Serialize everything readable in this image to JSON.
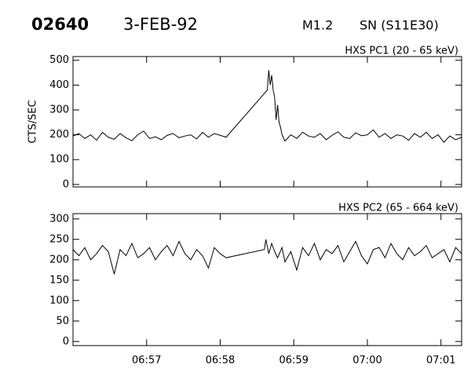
{
  "header": {
    "event": "02640",
    "date": "3-FEB-92",
    "class": "M1.2",
    "location": "SN (S11E30)"
  },
  "chart_data": [
    {
      "type": "line",
      "title": "HXS PC1 (20 - 65 keV)",
      "ylabel": "CTS/SEC",
      "color": "#000000",
      "x": [
        0,
        0.08,
        0.16,
        0.24,
        0.32,
        0.4,
        0.48,
        0.56,
        0.64,
        0.72,
        0.8,
        0.88,
        0.96,
        1.04,
        1.12,
        1.2,
        1.28,
        1.36,
        1.44,
        1.52,
        1.6,
        1.68,
        1.76,
        1.84,
        1.92,
        2,
        2.08,
        2.64,
        2.66,
        2.68,
        2.7,
        2.72,
        2.74,
        2.76,
        2.78,
        2.8,
        2.82,
        2.84,
        2.88,
        2.96,
        3.04,
        3.12,
        3.2,
        3.28,
        3.36,
        3.44,
        3.52,
        3.6,
        3.68,
        3.76,
        3.84,
        3.92,
        4,
        4.08,
        4.16,
        4.24,
        4.32,
        4.4,
        4.48,
        4.56,
        4.64,
        4.72,
        4.8,
        4.88,
        4.96,
        5.04,
        5.12,
        5.2,
        5.28
      ],
      "values": [
        195,
        205,
        185,
        200,
        178,
        210,
        190,
        182,
        205,
        188,
        176,
        200,
        215,
        185,
        192,
        180,
        198,
        205,
        188,
        195,
        200,
        183,
        210,
        190,
        205,
        198,
        190,
        380,
        460,
        400,
        440,
        380,
        350,
        260,
        320,
        250,
        230,
        200,
        175,
        200,
        185,
        210,
        195,
        190,
        205,
        180,
        198,
        212,
        190,
        185,
        208,
        196,
        200,
        220,
        190,
        205,
        185,
        200,
        195,
        178,
        205,
        190,
        210,
        185,
        200,
        170,
        195,
        180,
        190
      ],
      "xlim": [
        0,
        5.28
      ],
      "xticks": [
        1,
        2,
        3,
        4,
        5
      ],
      "ylim": [
        -10,
        515
      ],
      "yticks": [
        0,
        100,
        200,
        300,
        400,
        500
      ]
    },
    {
      "type": "line",
      "title": "HXS PC2 (65 - 664 keV)",
      "color": "#000000",
      "x": [
        0,
        0.08,
        0.16,
        0.24,
        0.32,
        0.4,
        0.48,
        0.56,
        0.64,
        0.72,
        0.8,
        0.88,
        0.96,
        1.04,
        1.12,
        1.2,
        1.28,
        1.36,
        1.44,
        1.52,
        1.6,
        1.68,
        1.76,
        1.84,
        1.92,
        2,
        2.08,
        2.6,
        2.62,
        2.66,
        2.7,
        2.74,
        2.78,
        2.84,
        2.88,
        2.96,
        3.04,
        3.12,
        3.2,
        3.28,
        3.36,
        3.44,
        3.52,
        3.6,
        3.68,
        3.76,
        3.84,
        3.92,
        4,
        4.08,
        4.16,
        4.24,
        4.32,
        4.4,
        4.48,
        4.56,
        4.64,
        4.72,
        4.8,
        4.88,
        4.96,
        5.04,
        5.12,
        5.2,
        5.28
      ],
      "values": [
        225,
        210,
        230,
        200,
        215,
        235,
        220,
        165,
        225,
        210,
        240,
        205,
        215,
        230,
        200,
        220,
        235,
        210,
        245,
        215,
        200,
        225,
        210,
        180,
        230,
        215,
        205,
        225,
        250,
        215,
        240,
        220,
        205,
        230,
        195,
        220,
        175,
        230,
        210,
        240,
        200,
        225,
        215,
        235,
        195,
        220,
        245,
        210,
        190,
        225,
        230,
        205,
        240,
        215,
        200,
        230,
        210,
        220,
        235,
        205,
        215,
        225,
        195,
        230,
        215
      ],
      "xlim": [
        0,
        5.28
      ],
      "xticks": [
        {
          "value": 1,
          "label": "06:57"
        },
        {
          "value": 2,
          "label": "06:58"
        },
        {
          "value": 3,
          "label": "06:59"
        },
        {
          "value": 4,
          "label": "07:00"
        },
        {
          "value": 5,
          "label": "07:01"
        }
      ],
      "ylim": [
        -10,
        313
      ],
      "yticks": [
        0,
        50,
        100,
        150,
        200,
        250,
        300
      ]
    }
  ]
}
